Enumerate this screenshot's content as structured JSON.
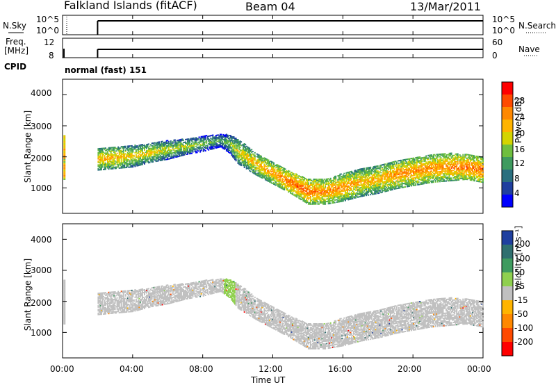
{
  "header": {
    "title": "Falkland Islands (fitACF)",
    "beam": "Beam 04",
    "date": "13/Mar/2011"
  },
  "top_panels": {
    "nsky_label": "N.Sky",
    "nsky_ticks": [
      "10^5",
      "10^0"
    ],
    "nsearch_label": "N.Search",
    "freq_label_1": "Freq.",
    "freq_label_2": "[MHz]",
    "freq_ticks": [
      "8",
      "12"
    ],
    "nave_label": "Nave",
    "nave_ticks": [
      "60",
      "0"
    ],
    "cpid_label": "CPID",
    "cpid_value": "normal (fast) 151"
  },
  "axes": {
    "xlabel": "Time UT",
    "ylabel": "Slant Range [km]",
    "x_ticks": [
      "00:00",
      "04:00",
      "08:00",
      "12:00",
      "16:00",
      "20:00",
      "00:00"
    ],
    "y_ticks": [
      "1000",
      "2000",
      "3000",
      "4000"
    ],
    "xlim_hours": [
      0,
      24
    ],
    "ylim_km": [
      180,
      4500
    ]
  },
  "colorbars": {
    "power": {
      "label": "Power [dB]",
      "ticks": [
        "28",
        "24",
        "20",
        "16",
        "12",
        "8",
        "4"
      ],
      "colors": [
        "#ff0000",
        "#ff4a00",
        "#ff8800",
        "#ffb400",
        "#d4d400",
        "#6fbf3f",
        "#3f9b5f",
        "#2a6f7f",
        "#1f3f9f",
        "#0000ff"
      ]
    },
    "velocity": {
      "label": "Velocity [m s⁻¹]",
      "ticks": [
        "200",
        "100",
        "50",
        "15",
        "-15",
        "-50",
        "-100",
        "-200"
      ],
      "colors": [
        "#1f3f9f",
        "#2f6f6f",
        "#3f9b5f",
        "#8fd04f",
        "#c0c0c0",
        "#ffb400",
        "#ff8800",
        "#ff4a00",
        "#ff0000"
      ]
    }
  },
  "chart_data": {
    "type": "heatmap",
    "title": "Falkland Islands (fitACF)",
    "xlabel": "Time UT",
    "ylabel": "Slant Range [km]",
    "xlim": [
      0,
      24
    ],
    "ylim": [
      180,
      4500
    ],
    "scatter_band": {
      "time_hours": [
        2.0,
        3.0,
        4.0,
        5.0,
        6.0,
        7.0,
        8.0,
        9.0,
        9.5,
        10.0,
        11.0,
        12.0,
        13.0,
        14.0,
        15.0,
        16.0,
        17.0,
        18.0,
        19.0,
        20.0,
        21.0,
        22.0,
        23.0,
        24.0
      ],
      "center_km": [
        1950,
        2000,
        2050,
        2150,
        2250,
        2350,
        2450,
        2550,
        2450,
        2200,
        1800,
        1500,
        1200,
        900,
        900,
        1050,
        1200,
        1300,
        1450,
        1550,
        1650,
        1700,
        1700,
        1600
      ],
      "halfwidth_km": [
        350,
        350,
        350,
        300,
        300,
        250,
        250,
        200,
        300,
        400,
        350,
        350,
        350,
        400,
        400,
        450,
        450,
        450,
        450,
        450,
        450,
        450,
        400,
        400
      ]
    },
    "power_db": [
      22,
      22,
      20,
      20,
      18,
      18,
      16,
      14,
      16,
      20,
      22,
      24,
      26,
      26,
      24,
      24,
      22,
      22,
      24,
      24,
      24,
      24,
      26,
      26
    ],
    "velocity_ms": [
      -15,
      -15,
      -15,
      -15,
      -15,
      -15,
      -15,
      0,
      30,
      0,
      -15,
      -15,
      -15,
      -15,
      -15,
      -15,
      -15,
      -15,
      -15,
      -15,
      -15,
      -15,
      -15,
      -15
    ]
  }
}
